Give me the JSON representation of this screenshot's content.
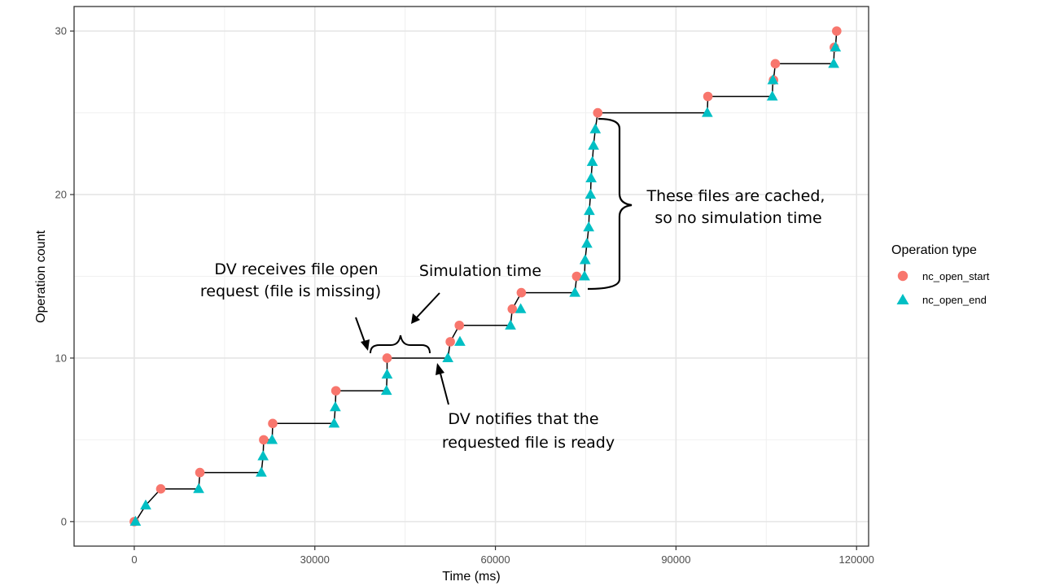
{
  "chart_data": {
    "type": "scatter",
    "title": "",
    "xlabel": "Time (ms)",
    "ylabel": "Operation count",
    "xlim": [
      -10000,
      122000
    ],
    "ylim": [
      -1.5,
      31.5
    ],
    "x_ticks": [
      0,
      30000,
      60000,
      90000,
      120000
    ],
    "y_ticks": [
      0,
      10,
      20,
      30
    ],
    "x_tick_labels": [
      "0",
      "30000",
      "60000",
      "90000",
      "120000"
    ],
    "y_tick_labels": [
      "0",
      "10",
      "20",
      "30"
    ],
    "grid": true,
    "legend": {
      "title": "Operation type",
      "position": "right",
      "entries": [
        {
          "label": "nc_open_start",
          "shape": "circle",
          "color": "#F8766D"
        },
        {
          "label": "nc_open_end",
          "shape": "triangle",
          "color": "#00BFC4"
        }
      ]
    },
    "series": [
      {
        "name": "nc_open_start",
        "color": "#F8766D",
        "shape": "circle",
        "points": [
          [
            0,
            0
          ],
          [
            4400,
            2
          ],
          [
            10900,
            3
          ],
          [
            21500,
            5
          ],
          [
            23000,
            6
          ],
          [
            33500,
            8
          ],
          [
            42000,
            10
          ],
          [
            52500,
            11
          ],
          [
            54000,
            12
          ],
          [
            62800,
            13
          ],
          [
            64300,
            14
          ],
          [
            73500,
            15
          ],
          [
            77000,
            25
          ],
          [
            95300,
            26
          ],
          [
            106200,
            27
          ],
          [
            106500,
            28
          ],
          [
            116300,
            29
          ],
          [
            116700,
            30
          ]
        ]
      },
      {
        "name": "nc_open_end",
        "color": "#00BFC4",
        "shape": "triangle",
        "points": [
          [
            200,
            0
          ],
          [
            1900,
            1
          ],
          [
            10700,
            2
          ],
          [
            21100,
            3
          ],
          [
            21400,
            4
          ],
          [
            22900,
            5
          ],
          [
            33200,
            6
          ],
          [
            33400,
            7
          ],
          [
            41900,
            8
          ],
          [
            42000,
            9
          ],
          [
            52100,
            10
          ],
          [
            54100,
            11
          ],
          [
            62500,
            12
          ],
          [
            64200,
            13
          ],
          [
            73200,
            14
          ],
          [
            74800,
            15
          ],
          [
            74900,
            16
          ],
          [
            75200,
            17
          ],
          [
            75500,
            18
          ],
          [
            75600,
            19
          ],
          [
            75800,
            20
          ],
          [
            75900,
            21
          ],
          [
            76100,
            22
          ],
          [
            76300,
            23
          ],
          [
            76600,
            24
          ],
          [
            95200,
            25
          ],
          [
            106000,
            26
          ],
          [
            106100,
            27
          ],
          [
            116200,
            28
          ],
          [
            116500,
            29
          ]
        ]
      }
    ],
    "step_path": [
      [
        0,
        0
      ],
      [
        200,
        0
      ],
      [
        1900,
        1
      ],
      [
        4400,
        2
      ],
      [
        10700,
        2
      ],
      [
        10900,
        3
      ],
      [
        21100,
        3
      ],
      [
        21400,
        4
      ],
      [
        21500,
        5
      ],
      [
        22900,
        5
      ],
      [
        23000,
        6
      ],
      [
        33200,
        6
      ],
      [
        33400,
        7
      ],
      [
        33500,
        8
      ],
      [
        41900,
        8
      ],
      [
        42000,
        9
      ],
      [
        42000,
        10
      ],
      [
        52100,
        10
      ],
      [
        52500,
        11
      ],
      [
        54000,
        12
      ],
      [
        62500,
        12
      ],
      [
        62800,
        13
      ],
      [
        64300,
        14
      ],
      [
        73200,
        14
      ],
      [
        73500,
        15
      ],
      [
        74800,
        15
      ],
      [
        74900,
        16
      ],
      [
        75200,
        17
      ],
      [
        75500,
        18
      ],
      [
        75600,
        19
      ],
      [
        75800,
        20
      ],
      [
        75900,
        21
      ],
      [
        76100,
        22
      ],
      [
        76300,
        23
      ],
      [
        76600,
        24
      ],
      [
        77000,
        25
      ],
      [
        95200,
        25
      ],
      [
        95300,
        26
      ],
      [
        106000,
        26
      ],
      [
        106100,
        27
      ],
      [
        106200,
        27
      ],
      [
        106500,
        28
      ],
      [
        116200,
        28
      ],
      [
        116300,
        29
      ],
      [
        116500,
        29
      ],
      [
        116700,
        30
      ]
    ],
    "annotations": [
      {
        "id": "dv-receives",
        "lines": [
          "DV receives file open",
          "request (file is missing)"
        ],
        "target": [
          42000,
          10
        ]
      },
      {
        "id": "simulation-time",
        "lines": [
          "Simulation time"
        ],
        "span": [
          42000,
          52100
        ],
        "at_y": 10
      },
      {
        "id": "dv-notifies",
        "lines": [
          "DV notifies that the",
          "requested file is ready"
        ],
        "target": [
          52100,
          10
        ]
      },
      {
        "id": "cached",
        "lines": [
          "These files are cached,",
          "so no simulation time"
        ],
        "span_y": [
          14,
          25
        ]
      }
    ]
  }
}
